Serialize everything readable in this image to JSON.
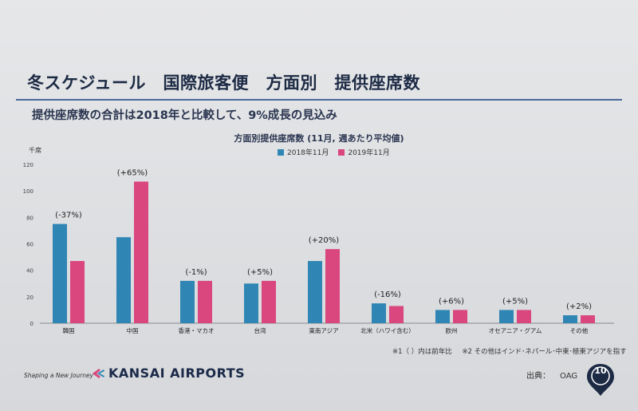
{
  "slide": {
    "title": "冬スケジュール　国際旅客便　方面別　提供座席数",
    "subtitle": "提供座席数の合計は2018年と比較して、9%成長の見込み",
    "footnote1": "※1（ ）内は前年比",
    "footnote2": "※2 その他はインド･ネパール･中東･極東アジアを指す",
    "source_label": "出典：",
    "source_value": "OAG",
    "tagline": "Shaping a New Journey",
    "logo_text": "KANSAI AIRPORTS",
    "page_number": "10"
  },
  "colors": {
    "series_2018": "#2f86b4",
    "series_2019": "#d9477e",
    "accent": "#1c2a44"
  },
  "chart_data": {
    "type": "bar",
    "title": "方面別提供座席数 (11月, 週あたり平均値)",
    "unit_label": "千席",
    "categories": [
      "韓国",
      "中国",
      "香港・マカオ",
      "台湾",
      "東南アジア",
      "北米（ハワイ含む）",
      "欧州",
      "オセアニア・グアム",
      "その他"
    ],
    "series": [
      {
        "name": "2018年11月",
        "values": [
          75,
          65,
          32,
          30,
          47,
          15,
          10,
          10,
          6
        ]
      },
      {
        "name": "2019年11月",
        "values": [
          47,
          107,
          32,
          32,
          56,
          13,
          10,
          10,
          6
        ]
      }
    ],
    "annotations": [
      "(-37%)",
      "(+65%)",
      "(-1%)",
      "(+5%)",
      "(+20%)",
      "(-16%)",
      "(+6%)",
      "(+5%)",
      "(+2%)"
    ],
    "yticks": [
      0,
      20,
      40,
      60,
      80,
      100,
      120
    ],
    "ylim": [
      0,
      120
    ],
    "legend_position": "top-center",
    "grid": false
  }
}
